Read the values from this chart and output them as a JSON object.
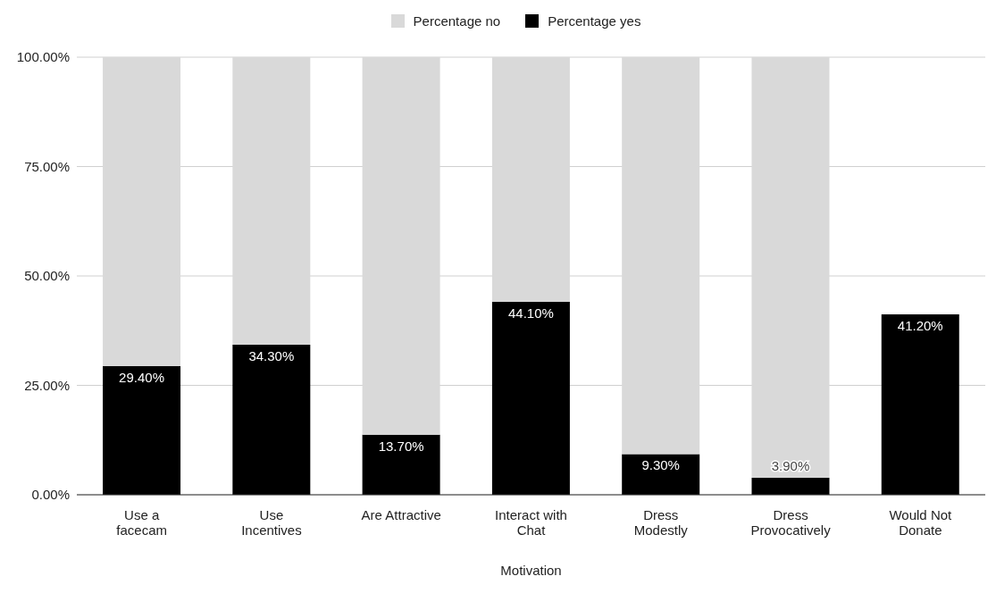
{
  "chart_data": {
    "type": "bar",
    "stacked": true,
    "xlabel": "Motivation",
    "categories": [
      "Use a facecam",
      "Use Incentives",
      "Are Attractive",
      "Interact with Chat",
      "Dress Modestly",
      "Dress Provocatively",
      "Would Not Donate"
    ],
    "series": [
      {
        "name": "Percentage yes",
        "color": "#000000",
        "values": [
          29.4,
          34.3,
          13.7,
          44.1,
          9.3,
          3.9,
          41.2
        ],
        "value_labels": [
          "29.40%",
          "34.30%",
          "13.70%",
          "44.10%",
          "9.30%",
          "3.90%",
          "41.20%"
        ]
      },
      {
        "name": "Percentage no",
        "color": "#d9d9d9",
        "values": [
          70.6,
          65.7,
          86.3,
          55.9,
          90.7,
          96.1,
          null
        ]
      }
    ],
    "ylim": [
      0,
      100
    ],
    "yticks": [
      {
        "value": 0,
        "label": "0.00%"
      },
      {
        "value": 25,
        "label": "25.00%"
      },
      {
        "value": 50,
        "label": "50.00%"
      },
      {
        "value": 75,
        "label": "75.00%"
      },
      {
        "value": 100,
        "label": "100.00%"
      }
    ],
    "grid": "y",
    "legend": "top"
  }
}
